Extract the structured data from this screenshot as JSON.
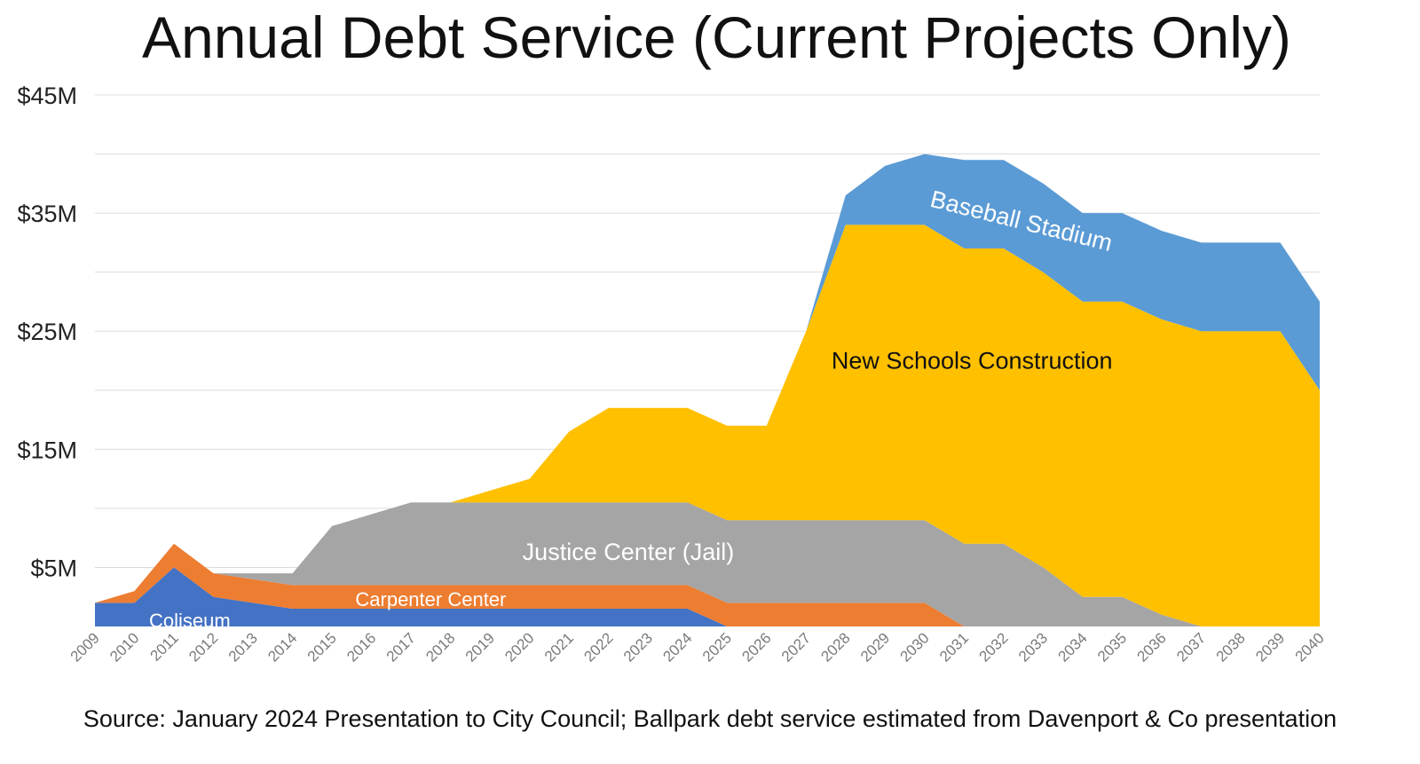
{
  "chart_data": {
    "type": "area",
    "stacked": true,
    "title": "Annual Debt Service (Current Projects Only)",
    "xlabel": "",
    "ylabel": "",
    "ylim": [
      0,
      45
    ],
    "y_ticks": [
      {
        "value": 5,
        "label": "$5M"
      },
      {
        "value": 15,
        "label": "$15M"
      },
      {
        "value": 25,
        "label": "$25M"
      },
      {
        "value": 35,
        "label": "$35M"
      },
      {
        "value": 45,
        "label": "$45M"
      }
    ],
    "grid": true,
    "categories": [
      "2009",
      "2010",
      "2011",
      "2012",
      "2013",
      "2014",
      "2015",
      "2016",
      "2017",
      "2018",
      "2019",
      "2020",
      "2021",
      "2022",
      "2023",
      "2024",
      "2025",
      "2026",
      "2027",
      "2028",
      "2029",
      "2030",
      "2031",
      "2032",
      "2033",
      "2034",
      "2035",
      "2036",
      "2037",
      "2038",
      "2039",
      "2040"
    ],
    "series": [
      {
        "name": "Coliseum",
        "color": "#4472c4",
        "label_color": "#ffffff",
        "values": [
          2,
          2,
          5,
          2.5,
          2,
          1.5,
          1.5,
          1.5,
          1.5,
          1.5,
          1.5,
          1.5,
          1.5,
          1.5,
          1.5,
          1.5,
          0,
          0,
          0,
          0,
          0,
          0,
          0,
          0,
          0,
          0,
          0,
          0,
          0,
          0,
          0,
          0
        ]
      },
      {
        "name": "Carpenter Center",
        "color": "#ed7d31",
        "label_color": "#ffffff",
        "values": [
          0,
          1,
          2,
          2,
          2,
          2,
          2,
          2,
          2,
          2,
          2,
          2,
          2,
          2,
          2,
          2,
          2,
          2,
          2,
          2,
          2,
          2,
          0,
          0,
          0,
          0,
          0,
          0,
          0,
          0,
          0,
          0
        ]
      },
      {
        "name": "Justice Center (Jail)",
        "color": "#a5a5a5",
        "label_color": "#ffffff",
        "values": [
          0,
          0,
          0,
          0,
          0.5,
          1,
          5,
          6,
          7,
          7,
          7,
          7,
          7,
          7,
          7,
          7,
          7,
          7,
          7,
          7,
          7,
          7,
          7,
          7,
          5,
          2.5,
          2.5,
          1,
          0,
          0,
          0,
          0
        ]
      },
      {
        "name": "New Schools Construction",
        "color": "#ffc000",
        "label_color": "#111111",
        "values": [
          0,
          0,
          0,
          0,
          0,
          0,
          0,
          0,
          0,
          0,
          1,
          2,
          6,
          8,
          8,
          8,
          8,
          8,
          16,
          25,
          25,
          25,
          25,
          25,
          25,
          25,
          25,
          25,
          25,
          25,
          25,
          20
        ]
      },
      {
        "name": "Baseball Stadium",
        "color": "#5b9bd5",
        "label_color": "#ffffff",
        "values": [
          0,
          0,
          0,
          0,
          0,
          0,
          0,
          0,
          0,
          0,
          0,
          0,
          0,
          0,
          0,
          0,
          0,
          0,
          0,
          2.5,
          5,
          6,
          7.5,
          7.5,
          7.5,
          7.5,
          7.5,
          7.5,
          7.5,
          7.5,
          7.5,
          7.5
        ]
      }
    ]
  },
  "source_note": "Source: January 2024 Presentation to City Council; Ballpark debt service estimated from Davenport & Co presentation"
}
